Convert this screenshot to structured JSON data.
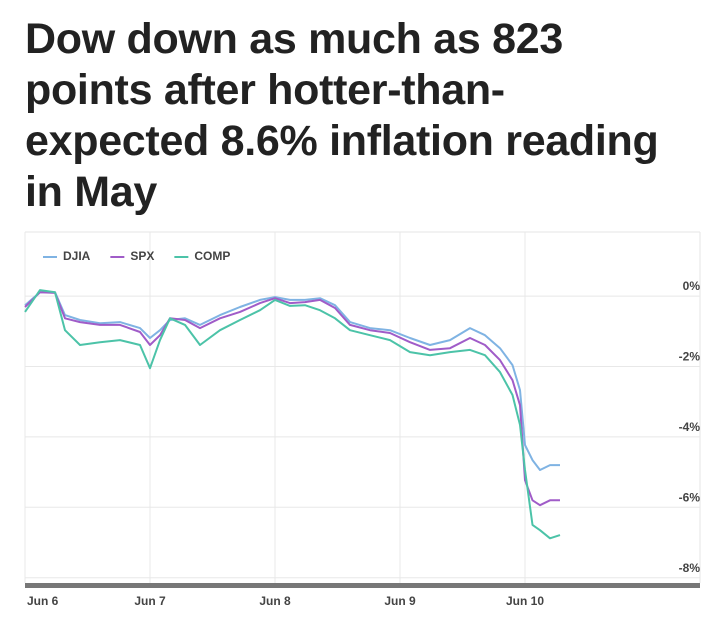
{
  "chart_data": {
    "type": "line",
    "title": "Dow down as much as 823 points after hotter-than-expected 8.6% inflation reading in May",
    "x": [
      0,
      0.12,
      0.24,
      0.32,
      0.44,
      0.6,
      0.76,
      0.92,
      1.0,
      1.08,
      1.16,
      1.28,
      1.4,
      1.56,
      1.72,
      1.88,
      2.0,
      2.12,
      2.24,
      2.36,
      2.48,
      2.6,
      2.76,
      2.92,
      3.08,
      3.24,
      3.4,
      3.56,
      3.68,
      3.8,
      3.9,
      3.96,
      4.0,
      4.06,
      4.12,
      4.2,
      4.28
    ],
    "series": [
      {
        "name": "DJIA",
        "color": "#7fb3e3",
        "values": [
          -0.26,
          0.11,
          0.11,
          -0.54,
          -0.68,
          -0.77,
          -0.74,
          -0.91,
          -1.19,
          -0.97,
          -0.68,
          -0.63,
          -0.82,
          -0.54,
          -0.31,
          -0.11,
          -0.03,
          -0.11,
          -0.11,
          -0.06,
          -0.26,
          -0.74,
          -0.91,
          -0.97,
          -1.19,
          -1.39,
          -1.25,
          -0.91,
          -1.11,
          -1.48,
          -1.96,
          -2.67,
          -4.23,
          -4.66,
          -4.94,
          -4.8,
          -4.8
        ]
      },
      {
        "name": "SPX",
        "color": "#a05cc8",
        "values": [
          -0.31,
          0.11,
          0.09,
          -0.63,
          -0.74,
          -0.82,
          -0.82,
          -1.02,
          -1.39,
          -1.11,
          -0.63,
          -0.68,
          -0.91,
          -0.63,
          -0.45,
          -0.2,
          -0.06,
          -0.2,
          -0.17,
          -0.11,
          -0.34,
          -0.82,
          -0.97,
          -1.05,
          -1.31,
          -1.53,
          -1.48,
          -1.19,
          -1.39,
          -1.82,
          -2.39,
          -3.1,
          -5.23,
          -5.8,
          -5.94,
          -5.8,
          -5.8
        ]
      },
      {
        "name": "COMP",
        "color": "#4cc3a8",
        "values": [
          -0.45,
          0.17,
          0.11,
          -0.97,
          -1.39,
          -1.31,
          -1.25,
          -1.39,
          -2.05,
          -1.25,
          -0.63,
          -0.82,
          -1.39,
          -0.97,
          -0.68,
          -0.4,
          -0.11,
          -0.28,
          -0.26,
          -0.4,
          -0.63,
          -0.97,
          -1.11,
          -1.25,
          -1.59,
          -1.68,
          -1.59,
          -1.53,
          -1.68,
          -2.16,
          -2.81,
          -3.66,
          -4.94,
          -6.5,
          -6.65,
          -6.88,
          -6.79
        ]
      }
    ],
    "xlim": [
      0,
      5.4
    ],
    "xticks": [
      {
        "value": 0,
        "label": "Jun 6"
      },
      {
        "value": 1,
        "label": "Jun 7"
      },
      {
        "value": 2,
        "label": "Jun 8"
      },
      {
        "value": 3,
        "label": "Jun 9"
      },
      {
        "value": 4,
        "label": "Jun 10"
      }
    ],
    "ylim": [
      -8.15,
      1.82
    ],
    "yticks": [
      {
        "value": 0,
        "label": "0%"
      },
      {
        "value": -2,
        "label": "-2%"
      },
      {
        "value": -4,
        "label": "-4%"
      },
      {
        "value": -6,
        "label": "-6%"
      },
      {
        "value": -8,
        "label": "-8%"
      }
    ],
    "grid": true,
    "legend": "top-left"
  }
}
